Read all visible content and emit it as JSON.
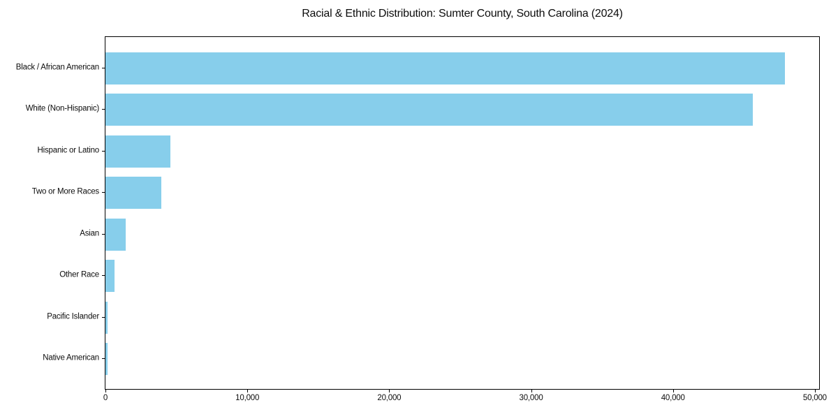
{
  "chart_data": {
    "type": "bar",
    "orientation": "horizontal",
    "title": "Racial & Ethnic Distribution: Sumter County, South Carolina (2024)",
    "categories": [
      "Black / African American",
      "White (Non-Hispanic)",
      "Hispanic or Latino",
      "Two or More Races",
      "Asian",
      "Other Race",
      "Pacific Islander",
      "Native American"
    ],
    "values": [
      47900,
      45600,
      4580,
      3960,
      1420,
      640,
      140,
      130
    ],
    "xlabel": "",
    "ylabel": "",
    "xlim": [
      0,
      50300
    ],
    "xticks": [
      0,
      10000,
      20000,
      30000,
      40000,
      50000
    ],
    "xtick_labels": [
      "0",
      "10,000",
      "20,000",
      "30,000",
      "40,000",
      "50,000"
    ],
    "bar_color": "#87CEEB",
    "axis_color": "#000000",
    "text_color": "#0d0d0d",
    "background_color": "#ffffff",
    "grid": false,
    "legend": null
  }
}
